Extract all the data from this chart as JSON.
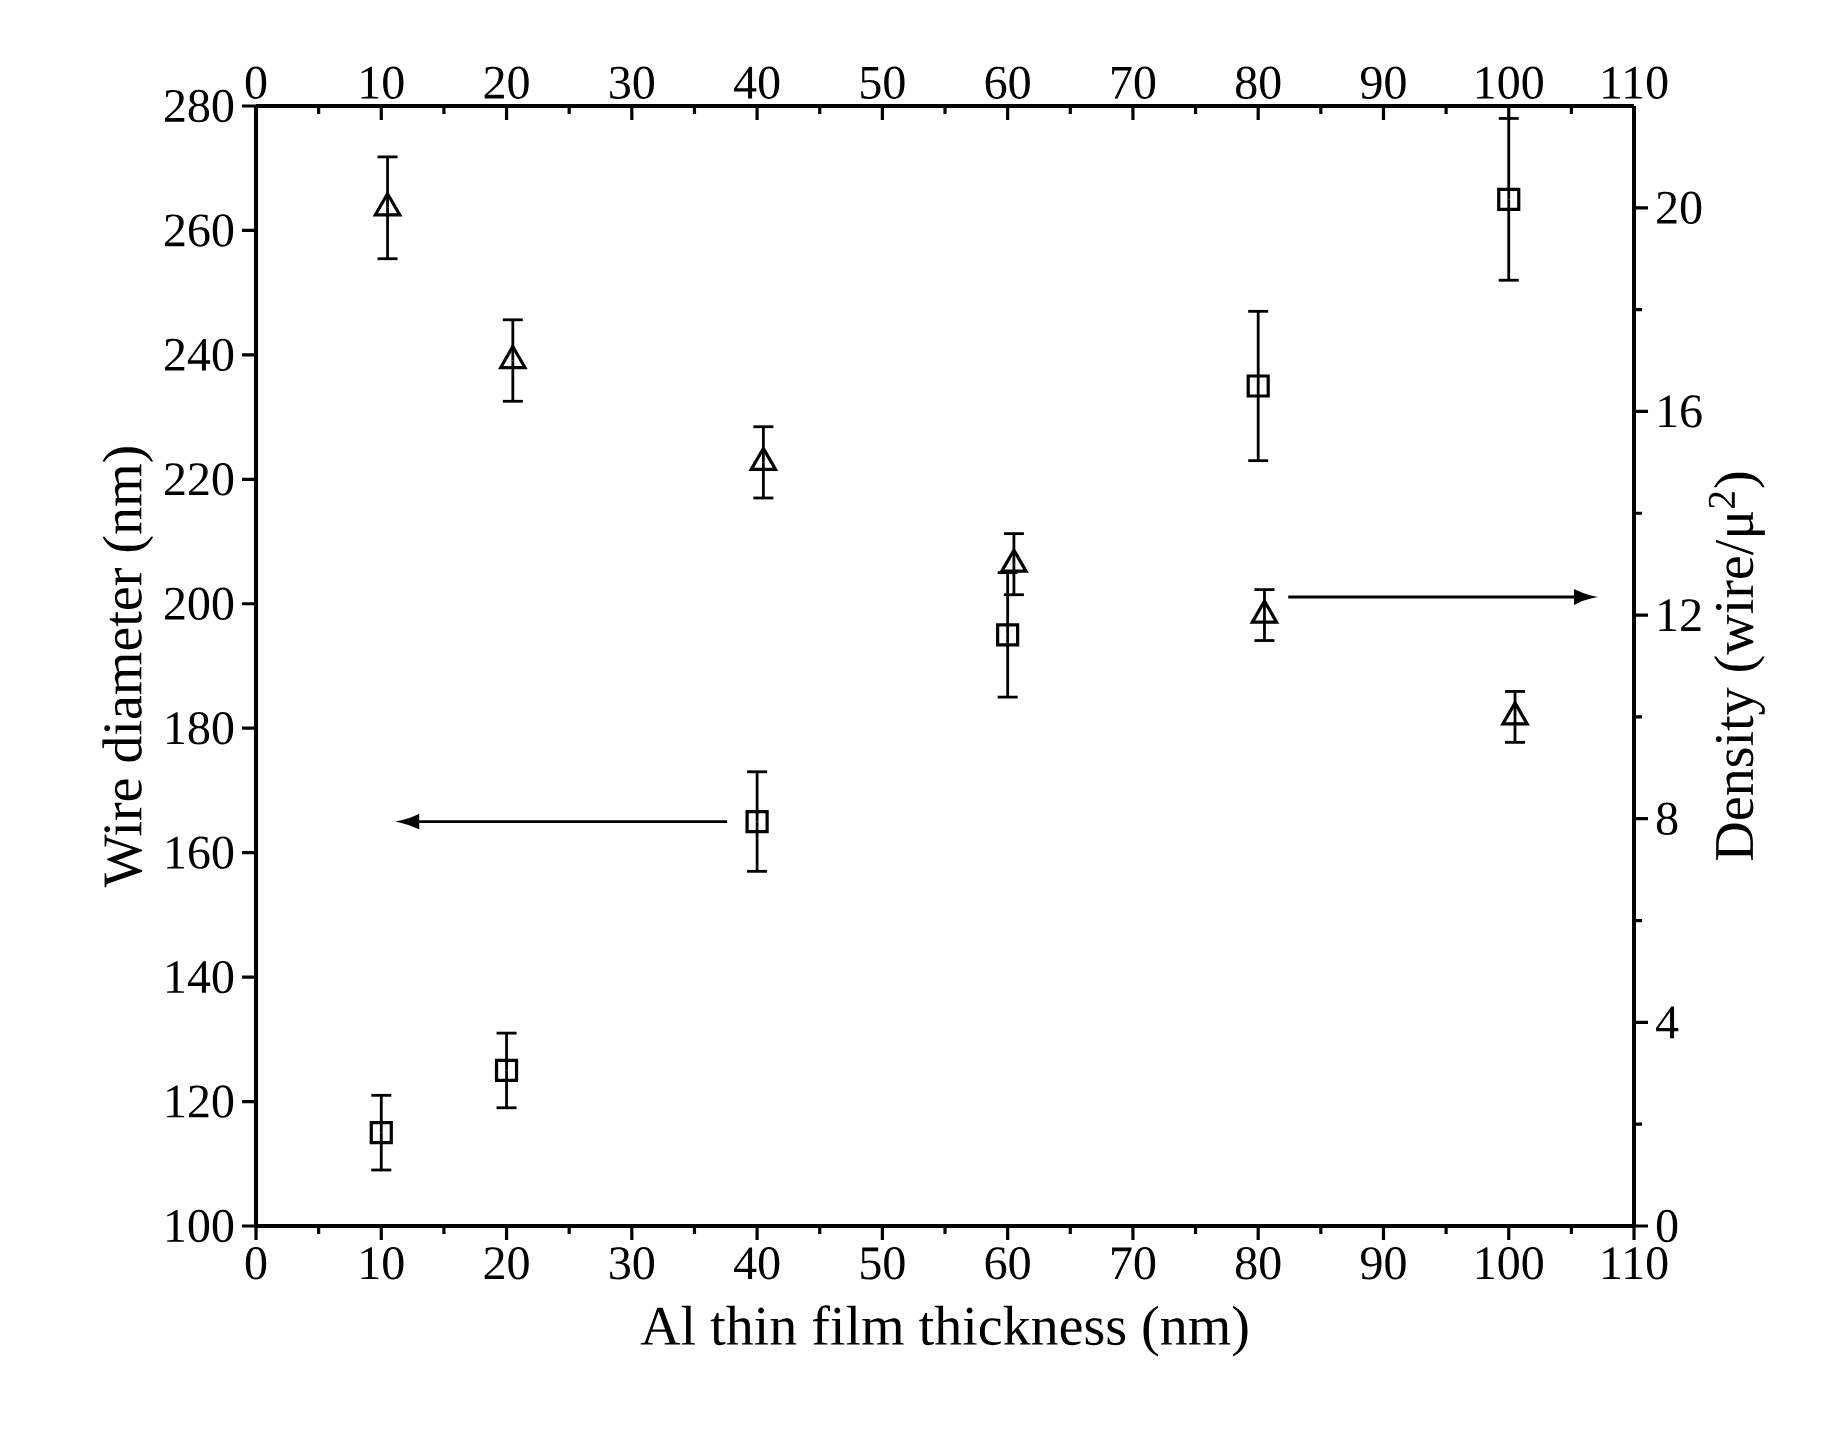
{
  "chart_data": {
    "type": "scatter",
    "xlabel": "Al thin film thickness (nm)",
    "ylabel": "Wire diameter (nm)",
    "y2label": "Density (wire/μ$^{2}$)",
    "x": [
      10,
      20,
      40,
      60,
      80,
      100
    ],
    "xlim": [
      0,
      110
    ],
    "xticks": [
      0,
      10,
      20,
      30,
      40,
      50,
      60,
      70,
      80,
      90,
      100,
      110
    ],
    "x2lim": [
      0,
      110
    ],
    "x2ticks": [
      0,
      10,
      20,
      30,
      40,
      50,
      60,
      70,
      80,
      90,
      100,
      110
    ],
    "ylim": [
      100,
      280
    ],
    "yticks": [
      100,
      120,
      140,
      160,
      180,
      200,
      220,
      240,
      260,
      280
    ],
    "y2lim": [
      0,
      22
    ],
    "y2ticks": [
      0,
      4,
      8,
      12,
      16,
      20
    ],
    "grid": false,
    "series": [
      {
        "marker": "square",
        "color": "#000000",
        "values": [
          115,
          125,
          165,
          195,
          235,
          265
        ],
        "errors": [
          6,
          6,
          8,
          10,
          12,
          13
        ]
      },
      {
        "marker": "triangle",
        "axis": "y2",
        "x": [
          10.5,
          20.5,
          40.5,
          60.5,
          80.5,
          100.5
        ],
        "color": "#000000",
        "values": [
          20,
          17,
          15,
          13,
          12,
          10
        ],
        "errors": [
          1,
          0.8,
          0.7,
          0.6,
          0.5,
          0.5
        ]
      }
    ]
  }
}
